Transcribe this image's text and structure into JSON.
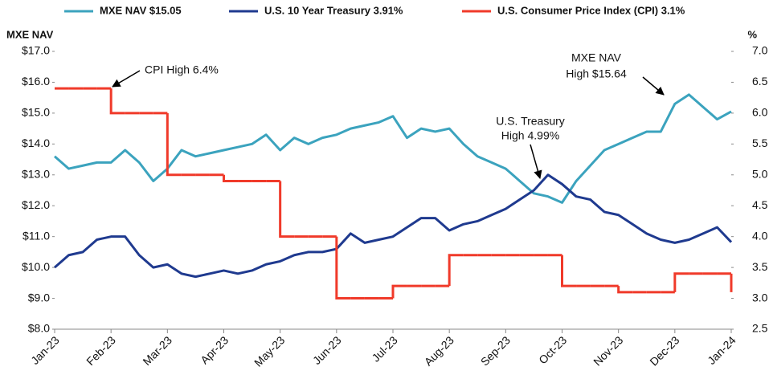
{
  "chart_data": {
    "type": "line",
    "y_label": "MXE NAV",
    "y2_label": "%",
    "x": [
      0,
      0.25,
      0.5,
      0.75,
      1,
      1.25,
      1.5,
      1.75,
      2,
      2.25,
      2.5,
      2.75,
      3,
      3.25,
      3.5,
      3.75,
      4,
      4.25,
      4.5,
      4.75,
      5,
      5.25,
      5.5,
      5.75,
      6,
      6.25,
      6.5,
      6.75,
      7,
      7.25,
      7.5,
      7.75,
      8,
      8.25,
      8.5,
      8.75,
      9,
      9.25,
      9.5,
      9.75,
      10,
      10.25,
      10.5,
      10.75,
      11,
      11.25,
      11.5,
      11.75,
      12
    ],
    "xlim": [
      0,
      12
    ],
    "xticks": [
      {
        "value": 0,
        "label": "Jan-23"
      },
      {
        "value": 1,
        "label": "Feb-23"
      },
      {
        "value": 2,
        "label": "Mar-23"
      },
      {
        "value": 3,
        "label": "Apr-23"
      },
      {
        "value": 4,
        "label": "May-23"
      },
      {
        "value": 5,
        "label": "Jun-23"
      },
      {
        "value": 6,
        "label": "Jul-23"
      },
      {
        "value": 7,
        "label": "Aug-23"
      },
      {
        "value": 8,
        "label": "Sep-23"
      },
      {
        "value": 9,
        "label": "Oct-23"
      },
      {
        "value": 10,
        "label": "Nov-23"
      },
      {
        "value": 11,
        "label": "Dec-23"
      },
      {
        "value": 12,
        "label": "Jan-24"
      }
    ],
    "ylim": [
      8,
      17
    ],
    "yticks": [
      {
        "value": 8,
        "label": "$8.0"
      },
      {
        "value": 9,
        "label": "$9.0"
      },
      {
        "value": 10,
        "label": "$10.0"
      },
      {
        "value": 11,
        "label": "$11.0"
      },
      {
        "value": 12,
        "label": "$12.0"
      },
      {
        "value": 13,
        "label": "$13.0"
      },
      {
        "value": 14,
        "label": "$14.0"
      },
      {
        "value": 15,
        "label": "$15.0"
      },
      {
        "value": 16,
        "label": "$16.0"
      },
      {
        "value": 17,
        "label": "$17.0"
      }
    ],
    "y2lim": [
      2.5,
      7
    ],
    "y2ticks": [
      2.5,
      {
        "value": 3,
        "label": "3.0"
      },
      3.5,
      {
        "value": 4,
        "label": "4.0"
      },
      4.5,
      {
        "value": 5,
        "label": "5.0"
      },
      5.5,
      {
        "value": 6,
        "label": "6.0"
      },
      6.5,
      {
        "value": 7,
        "label": "7.0"
      }
    ],
    "series": [
      {
        "name": "MXE NAV $15.05",
        "color": "#3ba3be",
        "values": [
          13.6,
          13.2,
          13.3,
          13.4,
          13.4,
          13.8,
          13.4,
          12.8,
          13.2,
          13.8,
          13.6,
          13.7,
          13.8,
          13.9,
          14.0,
          14.3,
          13.8,
          14.2,
          14.0,
          14.2,
          14.3,
          14.5,
          14.6,
          14.7,
          14.9,
          14.2,
          14.5,
          14.4,
          14.5,
          14.0,
          13.6,
          13.4,
          13.2,
          12.8,
          12.4,
          12.3,
          12.1,
          12.8,
          13.3,
          13.8,
          14.0,
          14.2,
          14.4,
          14.4,
          15.3,
          15.6,
          15.2,
          14.8,
          15.05
        ]
      },
      {
        "name": "U.S. 10 Year Treasury 3.91%",
        "color": "#1f3a8f",
        "axis": "y2",
        "values": [
          3.5,
          3.7,
          3.75,
          3.95,
          4.0,
          4.0,
          3.7,
          3.5,
          3.55,
          3.4,
          3.35,
          3.4,
          3.45,
          3.4,
          3.45,
          3.55,
          3.6,
          3.7,
          3.75,
          3.75,
          3.8,
          4.05,
          3.9,
          3.95,
          4.0,
          4.15,
          4.3,
          4.3,
          4.1,
          4.2,
          4.25,
          4.35,
          4.45,
          4.6,
          4.75,
          5.0,
          4.85,
          4.65,
          4.6,
          4.4,
          4.35,
          4.2,
          4.05,
          3.95,
          3.9,
          3.95,
          4.05,
          4.15,
          3.91
        ]
      },
      {
        "name": "U.S. Consumer Price Index (CPI) 3.1%",
        "color": "#f03a2a",
        "axis": "y2",
        "step": true,
        "values": [
          6.4,
          6.4,
          6.4,
          6.4,
          6.0,
          6.0,
          6.0,
          6.0,
          5.0,
          5.0,
          5.0,
          5.0,
          4.9,
          4.9,
          4.9,
          4.9,
          4.0,
          4.0,
          4.0,
          4.0,
          3.0,
          3.0,
          3.0,
          3.0,
          3.2,
          3.2,
          3.2,
          3.2,
          3.7,
          3.7,
          3.7,
          3.7,
          3.7,
          3.7,
          3.7,
          3.7,
          3.2,
          3.2,
          3.2,
          3.2,
          3.1,
          3.1,
          3.1,
          3.1,
          3.4,
          3.4,
          3.4,
          3.4,
          3.1
        ]
      }
    ],
    "annotations": [
      {
        "lines": [
          "CPI High 6.4%"
        ]
      },
      {
        "lines": [
          "U.S. Treasury",
          "High 4.99%"
        ]
      },
      {
        "lines": [
          "MXE NAV",
          "High $15.64"
        ]
      }
    ]
  }
}
